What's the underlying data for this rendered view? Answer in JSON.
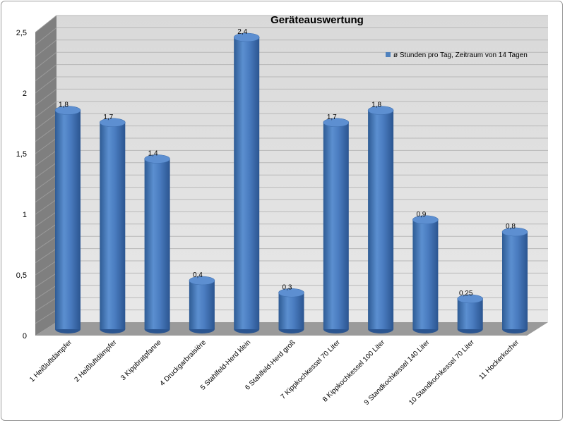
{
  "chart_data": {
    "type": "bar",
    "title": "Geräteauswertung",
    "xlabel": "",
    "ylabel": "",
    "ylim": [
      0,
      2.5
    ],
    "yticks": [
      0,
      0.5,
      1,
      1.5,
      2,
      2.5
    ],
    "ytick_labels": [
      "0",
      "0,5",
      "1",
      "1,5",
      "2",
      "2,5"
    ],
    "grid": true,
    "legend_position": "top-right",
    "categories": [
      "1  Heißluftdämpfer",
      "2  Heißluftdämpfer",
      "3  Kippbratpfanne",
      "4  Druckgarbraisière",
      "5  Stahlfeld-Herd klein",
      "6  Stahlfeld-Herd groß",
      "7  Kippkochkessel 70 Liter",
      "8  Kippkochkessel 100 Liter",
      "9  Standkochkessel 140 Liter",
      "10  Standkochkessel 70 Liter",
      "11  Hockerkocher"
    ],
    "series": [
      {
        "name": "ø Stunden pro Tag, Zeitraum von 14 Tagen",
        "color": "#4f81bd",
        "values": [
          1.8,
          1.7,
          1.4,
          0.4,
          2.4,
          0.3,
          1.7,
          1.8,
          0.9,
          0.25,
          0.8
        ],
        "value_labels": [
          "1,8",
          "1,7",
          "1,4",
          "0,4",
          "2,4",
          "0,3",
          "1,7",
          "1,8",
          "0,9",
          "0,25",
          "0,8"
        ]
      }
    ]
  }
}
